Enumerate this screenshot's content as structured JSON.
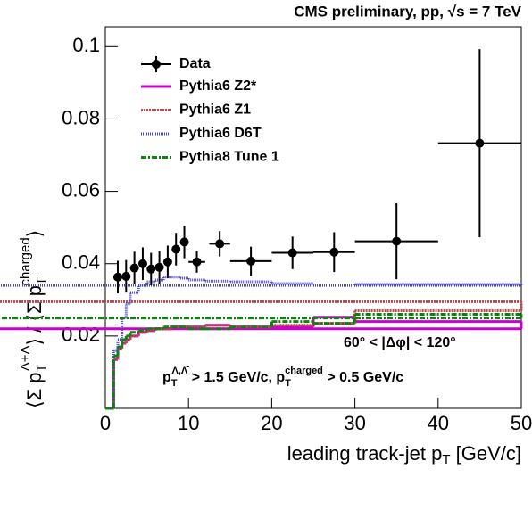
{
  "chart_data": {
    "type": "errorbar_step",
    "title": "CMS preliminary, pp, √s = 7 TeV",
    "x_label": [
      "leading track-jet p",
      "T",
      " [GeV/c]"
    ],
    "y_label": [
      "⟨Σ p",
      "T",
      "Λ+Λ̄",
      "⟩ / ⟨Σ p",
      "T",
      "charged",
      "⟩"
    ],
    "annotations": [
      [
        "60° < |Δφ| < 120°"
      ],
      [
        "p",
        "T",
        "Λ,Λ̄",
        " > 1.5 GeV/c, p",
        "T",
        "charged",
        " > 0.5 GeV/c"
      ]
    ],
    "xlim": [
      0,
      50
    ],
    "ylim": [
      0,
      0.1055
    ],
    "xticks": [
      0,
      10,
      20,
      30,
      40,
      50
    ],
    "yticks": [
      0.02,
      0.04,
      0.06,
      0.08,
      0.1
    ],
    "data_series": {
      "name": "Data",
      "color": "#000000",
      "x": [
        1.5,
        2.5,
        3.5,
        4.5,
        5.5,
        6.5,
        7.5,
        8.5,
        9.5,
        11,
        13.75,
        17.5,
        22.5,
        27.5,
        35,
        45
      ],
      "xerr": [
        0.5,
        0.5,
        0.5,
        0.5,
        0.5,
        0.5,
        0.5,
        0.5,
        0.5,
        1,
        1.25,
        2.5,
        2.5,
        2.5,
        5,
        5
      ],
      "values": [
        0.0363,
        0.0365,
        0.0388,
        0.04,
        0.0385,
        0.039,
        0.0405,
        0.044,
        0.046,
        0.0405,
        0.0455,
        0.0407,
        0.043,
        0.0432,
        0.0462,
        0.0733
      ],
      "yerr": [
        0.0045,
        0.0045,
        0.0045,
        0.0045,
        0.0045,
        0.0045,
        0.0045,
        0.0045,
        0.0045,
        0.003,
        0.0035,
        0.004,
        0.0045,
        0.0055,
        0.0105,
        0.026
      ]
    },
    "bins": [
      0,
      1,
      1.5,
      2,
      2.5,
      3,
      4,
      5,
      6,
      7,
      8,
      9,
      10,
      12,
      15,
      20,
      25,
      30,
      50
    ],
    "series": [
      {
        "name": "Pythia6 Z2*",
        "color": "#cc00cc",
        "values": [
          0,
          0.0135,
          0.0165,
          0.018,
          0.019,
          0.02,
          0.021,
          0.0215,
          0.022,
          0.022,
          0.0225,
          0.0225,
          0.0225,
          0.023,
          0.0225,
          0.0225,
          0.0252,
          0.024,
          0.022
        ]
      },
      {
        "name": "Pythia6 Z1",
        "color": "#c04848",
        "values": [
          0,
          0.0135,
          0.0165,
          0.018,
          0.019,
          0.02,
          0.021,
          0.0215,
          0.022,
          0.022,
          0.0225,
          0.0225,
          0.0225,
          0.023,
          0.0225,
          0.023,
          0.0235,
          0.027,
          0.0295
        ]
      },
      {
        "name": "Pythia6 D6T",
        "color": "#4848c8",
        "values": [
          0,
          0.016,
          0.019,
          0.025,
          0.029,
          0.032,
          0.034,
          0.035,
          0.0355,
          0.0363,
          0.0363,
          0.036,
          0.0355,
          0.0352,
          0.035,
          0.0345,
          0.034,
          0.0343,
          0.034
        ]
      },
      {
        "name": "Pythia8 Tune 1",
        "color": "#108010",
        "values": [
          0,
          0.0145,
          0.017,
          0.019,
          0.02,
          0.021,
          0.0215,
          0.022,
          0.022,
          0.0225,
          0.0225,
          0.0225,
          0.022,
          0.022,
          0.0225,
          0.024,
          0.0235,
          0.026,
          0.025
        ]
      }
    ]
  }
}
